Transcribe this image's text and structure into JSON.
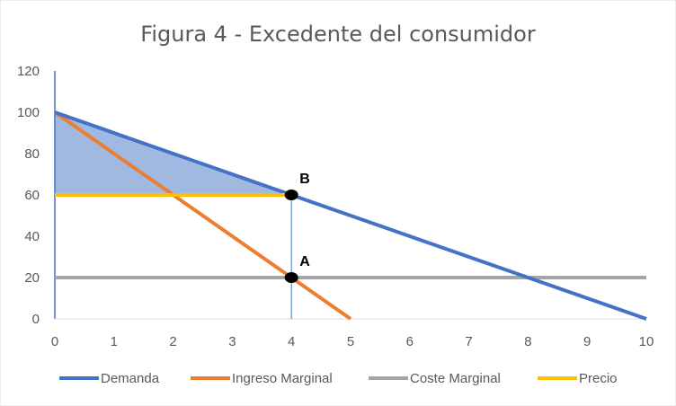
{
  "chart_data": {
    "type": "line",
    "title": "Figura 4 - Excedente del consumidor",
    "xlim": [
      0,
      10
    ],
    "ylim": [
      0,
      120
    ],
    "x_ticks": [
      0,
      1,
      2,
      3,
      4,
      5,
      6,
      7,
      8,
      9,
      10
    ],
    "y_ticks": [
      0,
      20,
      40,
      60,
      80,
      100,
      120
    ],
    "grid": false,
    "legend_position": "bottom",
    "series": [
      {
        "name": "Demanda",
        "color": "#4472C4",
        "x": [
          0,
          10
        ],
        "y": [
          100,
          0
        ]
      },
      {
        "name": "Ingreso Marginal",
        "color": "#ED7D31",
        "x": [
          0,
          5
        ],
        "y": [
          100,
          0
        ]
      },
      {
        "name": "Coste Marginal",
        "color": "#A5A5A5",
        "x": [
          0,
          10
        ],
        "y": [
          20,
          20
        ]
      },
      {
        "name": "Precio",
        "color": "#FFC000",
        "x": [
          0,
          4
        ],
        "y": [
          60,
          60
        ]
      }
    ],
    "shaded_area": {
      "color": "#4472C4",
      "opacity": 0.5,
      "x": [
        0,
        4,
        0
      ],
      "y": [
        100,
        60,
        60
      ]
    },
    "guide_line": {
      "color": "#4472C4",
      "x": [
        4,
        4
      ],
      "y": [
        0,
        60
      ]
    },
    "points": [
      {
        "label": "A",
        "x": 4,
        "y": 20
      },
      {
        "label": "B",
        "x": 4,
        "y": 60
      }
    ]
  }
}
